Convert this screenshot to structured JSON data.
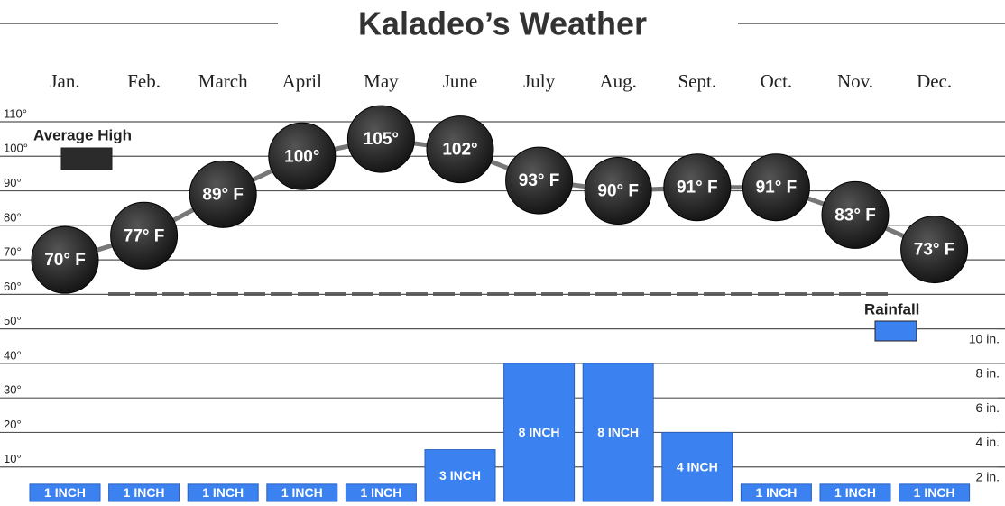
{
  "chart_data": {
    "type": "combo",
    "title": "Kaladeo’s Weather",
    "categories": [
      "Jan.",
      "Feb.",
      "March",
      "April",
      "May",
      "June",
      "July",
      "Aug.",
      "Sept.",
      "Oct.",
      "Nov.",
      "Dec."
    ],
    "series": [
      {
        "name": "Average High",
        "type": "line",
        "color": "#2b2b2b",
        "values": [
          70,
          77,
          89,
          100,
          105,
          102,
          93,
          90,
          91,
          91,
          83,
          73
        ],
        "value_labels": [
          "70° F",
          "77° F",
          "89° F",
          "100°",
          "105°",
          "102°",
          "93° F",
          "90° F",
          "91° F",
          "91° F",
          "83° F",
          "73° F"
        ]
      },
      {
        "name": "Rainfall",
        "type": "bar",
        "axis": "y2",
        "color": "#3b82f0",
        "values": [
          1,
          1,
          1,
          1,
          1,
          3,
          8,
          8,
          4,
          1,
          1,
          1
        ],
        "value_labels": [
          "1 INCH",
          "1 INCH",
          "1 INCH",
          "1 INCH",
          "1 INCH",
          "3 INCH",
          "8 INCH",
          "8 INCH",
          "4 INCH",
          "1 INCH",
          "1 INCH",
          "1 INCH"
        ]
      }
    ],
    "ylim": [
      0,
      110
    ],
    "yticks": [
      {
        "value": 10,
        "label": "10°"
      },
      {
        "value": 20,
        "label": "20°"
      },
      {
        "value": 30,
        "label": "30°"
      },
      {
        "value": 40,
        "label": "40°"
      },
      {
        "value": 50,
        "label": "50°"
      },
      {
        "value": 60,
        "label": "60°"
      },
      {
        "value": 70,
        "label": "70°"
      },
      {
        "value": 80,
        "label": "80°"
      },
      {
        "value": 90,
        "label": "90°"
      },
      {
        "value": 100,
        "label": "100°"
      },
      {
        "value": 110,
        "label": "110°"
      }
    ],
    "y2lim": [
      0,
      22
    ],
    "y2ticks": [
      {
        "value": 2,
        "label": "2 in."
      },
      {
        "value": 4,
        "label": "4 in."
      },
      {
        "value": 6,
        "label": "6 in."
      },
      {
        "value": 8,
        "label": "8 in."
      },
      {
        "value": 10,
        "label": "10 in."
      }
    ],
    "grid": true
  }
}
